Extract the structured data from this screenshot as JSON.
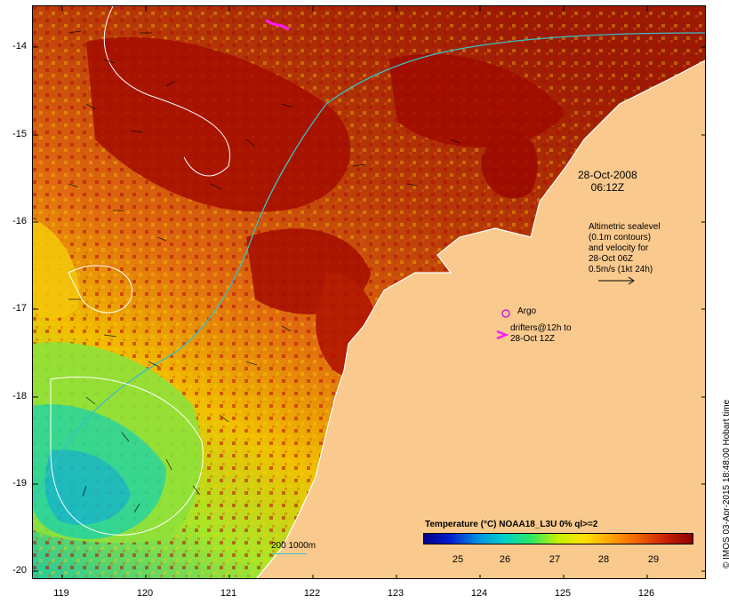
{
  "map": {
    "timestamp": [
      "28-Oct-2008",
      "06:12Z"
    ],
    "altimetric_note": [
      "Altimetric sealevel",
      "(0.1m contours)",
      "and velocity for",
      "28-Oct 06Z",
      "0.5m/s (1kt 24h)"
    ],
    "argo_label": "Argo",
    "drifters_label": [
      "drifters@12h to",
      "28-Oct 12Z"
    ],
    "depth_scale_label": "200 1000m",
    "credit": "© IMOS 03-Apr-2015 18:48:00 Hobart time",
    "y_ticks": [
      "-14",
      "-15",
      "-16",
      "-17",
      "-18",
      "-19",
      "-20"
    ],
    "x_ticks": [
      "119",
      "120",
      "121",
      "122",
      "123",
      "124",
      "125",
      "126"
    ],
    "colorbar": {
      "title": "Temperature (°C) NOAA18_L3U 0% ql>=2",
      "ticks": [
        "25",
        "26",
        "27",
        "28",
        "29"
      ]
    },
    "colors": {
      "land": "#f9c98d",
      "coast": "#ffffff",
      "isobath": "#3bbfc2",
      "argo": "#d11fd6",
      "drifter": "#ff1aff"
    }
  }
}
